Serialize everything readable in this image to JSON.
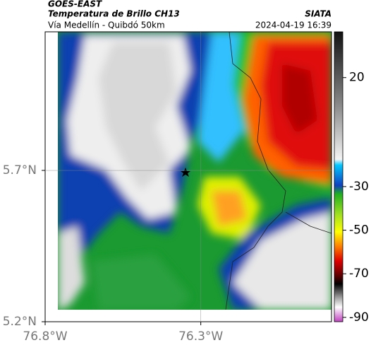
{
  "chart_data": {
    "type": "map",
    "title": "GOES-EAST",
    "subtitle": "Temperatura de Brillo CH13",
    "region": "Vía Medellín - Quibdó 50km",
    "source": "SIATA",
    "datetime": "2024-04-19 16:39",
    "xlim": [
      -76.8,
      -75.88
    ],
    "ylim": [
      5.2,
      6.158
    ],
    "xticks": [
      {
        "value": -76.8,
        "label": "76.8°W"
      },
      {
        "value": -76.3,
        "label": "76.3°W"
      }
    ],
    "yticks": [
      {
        "value": 5.2,
        "label": "5.2°N"
      },
      {
        "value": 5.7,
        "label": "5.7°N"
      }
    ],
    "clim": [
      -92,
      41
    ],
    "cticks": [
      20,
      -30,
      -50,
      -70,
      -90
    ],
    "grid": true
  }
}
